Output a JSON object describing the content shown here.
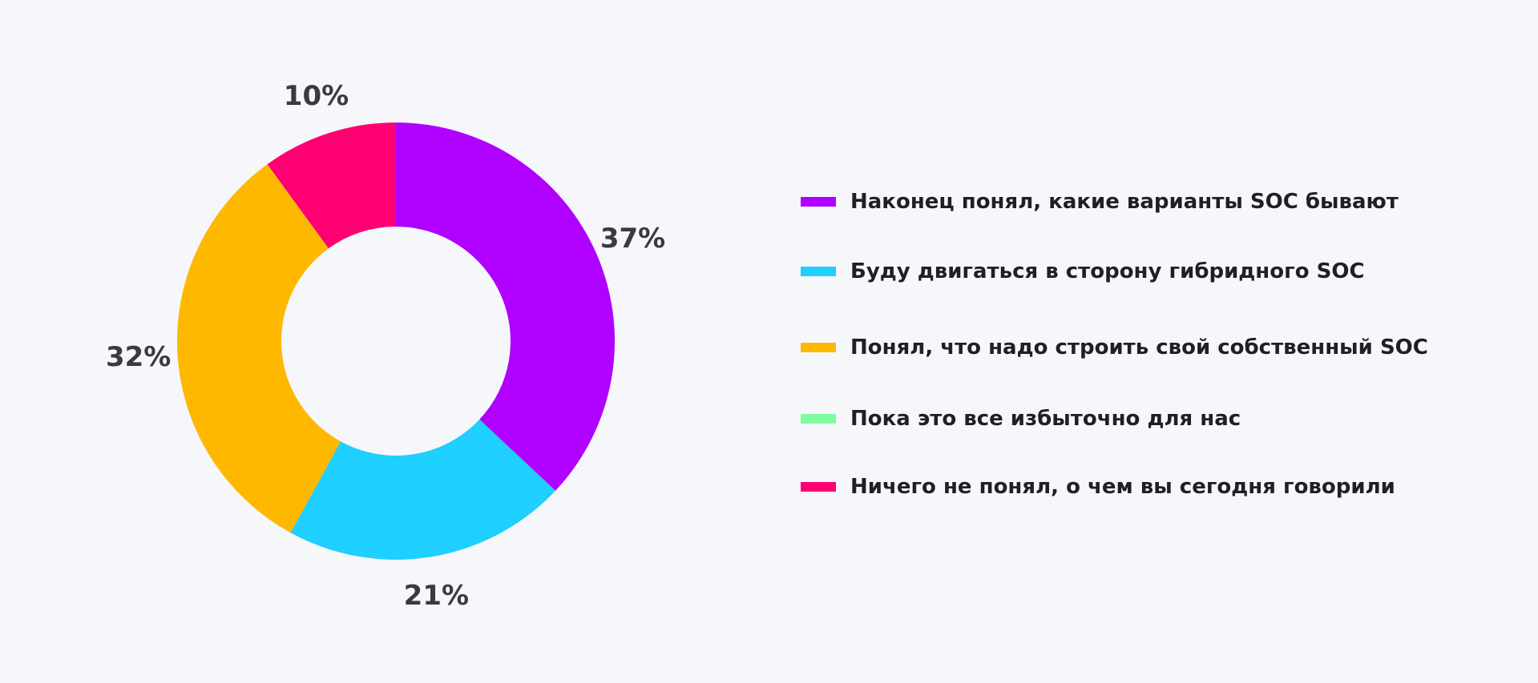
{
  "chart_data": {
    "type": "pie",
    "variant": "donut",
    "title": "",
    "legend_position": "right",
    "series": [
      {
        "name": "Наконец понял, какие варианты SOC бывают",
        "value": 37,
        "label": "37%",
        "color": "#b000ff"
      },
      {
        "name": "Буду двигаться в сторону гибридного SOC",
        "value": 21,
        "label": "21%",
        "color": "#1ecfff"
      },
      {
        "name": "Понял, что надо строить свой собственный SOC",
        "value": 32,
        "label": "32%",
        "color": "#ffb800"
      },
      {
        "name": "Пока это все избыточно для нас",
        "value": 0,
        "label": "",
        "color": "#7dfca0"
      },
      {
        "name": "Ничего не понял, о чем вы сегодня говорили",
        "value": 10,
        "label": "10%",
        "color": "#ff0072"
      }
    ]
  }
}
